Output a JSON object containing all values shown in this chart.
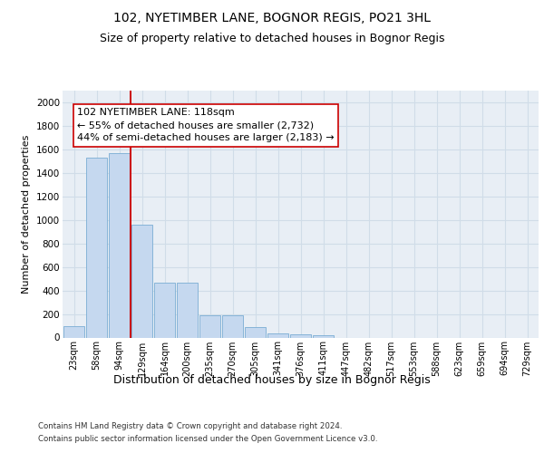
{
  "title": "102, NYETIMBER LANE, BOGNOR REGIS, PO21 3HL",
  "subtitle": "Size of property relative to detached houses in Bognor Regis",
  "xlabel": "Distribution of detached houses by size in Bognor Regis",
  "ylabel": "Number of detached properties",
  "categories": [
    "23sqm",
    "58sqm",
    "94sqm",
    "129sqm",
    "164sqm",
    "200sqm",
    "235sqm",
    "270sqm",
    "305sqm",
    "341sqm",
    "376sqm",
    "411sqm",
    "447sqm",
    "482sqm",
    "517sqm",
    "553sqm",
    "588sqm",
    "623sqm",
    "659sqm",
    "694sqm",
    "729sqm"
  ],
  "values": [
    100,
    1530,
    1570,
    960,
    470,
    470,
    185,
    185,
    85,
    35,
    25,
    20,
    0,
    0,
    0,
    0,
    0,
    0,
    0,
    0,
    0
  ],
  "bar_color": "#c5d8ef",
  "bar_edgecolor": "#7aadd4",
  "vline_x": 2.5,
  "vline_color": "#cc0000",
  "annotation_text": "102 NYETIMBER LANE: 118sqm\n← 55% of detached houses are smaller (2,732)\n44% of semi-detached houses are larger (2,183) →",
  "ylim": [
    0,
    2100
  ],
  "yticks": [
    0,
    200,
    400,
    600,
    800,
    1000,
    1200,
    1400,
    1600,
    1800,
    2000
  ],
  "grid_color": "#d0dce8",
  "bg_color": "#e8eef5",
  "background_color": "#ffffff",
  "footer_line1": "Contains HM Land Registry data © Crown copyright and database right 2024.",
  "footer_line2": "Contains public sector information licensed under the Open Government Licence v3.0.",
  "title_fontsize": 10,
  "subtitle_fontsize": 9,
  "annot_fontsize": 8,
  "xlabel_fontsize": 9,
  "ylabel_fontsize": 8
}
